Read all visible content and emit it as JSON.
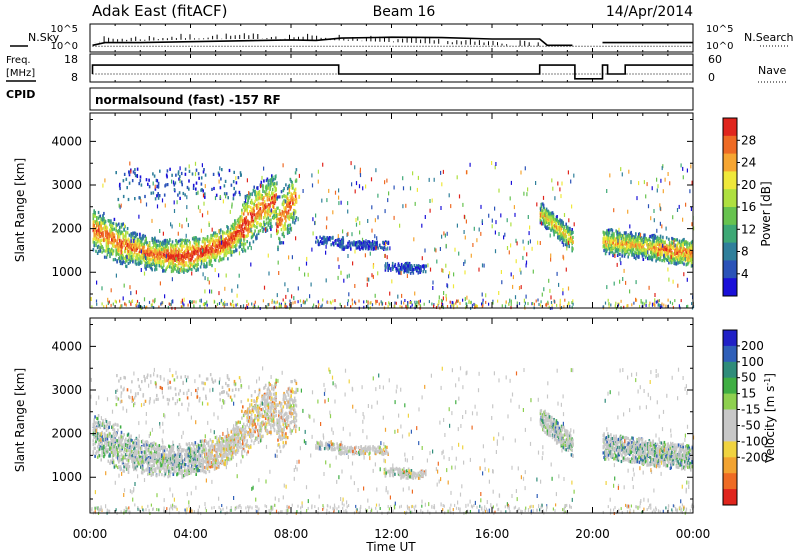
{
  "header": {
    "station": "Adak East (fitACF)",
    "beam": "Beam 16",
    "date": "14/Apr/2014"
  },
  "strip_labels": {
    "nsky": "N.Sky",
    "freq_line1": "Freq.",
    "freq_line2": "[MHz]",
    "cpid": "CPID",
    "nsearch": "N.Search",
    "nave": "Nave"
  },
  "cpid_text": "normalsound (fast) -157 RF",
  "chart_data": [
    {
      "type": "line",
      "name": "noise-strip",
      "left_ticks": [
        "10^5",
        "10^0"
      ],
      "right_ticks": [
        "10^5",
        "10^0"
      ],
      "x_range_hours": [
        0,
        24
      ],
      "series": [
        {
          "label": "N.Sky",
          "style": "solid",
          "x": [
            0.1,
            0.6,
            2.0,
            4.0,
            6.0,
            8.0,
            9.0,
            10.0,
            12.0,
            14.0,
            16.0,
            17.9,
            18.2,
            19.2,
            19.3,
            20.4,
            20.6,
            21.5,
            22.0,
            24.0
          ],
          "y": [
            0.15,
            0.3,
            0.3,
            0.35,
            0.4,
            0.45,
            0.42,
            0.55,
            0.6,
            0.58,
            0.5,
            0.5,
            0.15,
            0.15,
            null,
            0.3,
            0.3,
            0.3,
            0.3,
            0.3
          ]
        },
        {
          "label": "N.Search",
          "style": "dotted",
          "x": [
            0.1,
            24.0
          ],
          "y": [
            0.1,
            0.1
          ]
        }
      ]
    },
    {
      "type": "line",
      "name": "freq-nave-strip",
      "left_ticks": [
        18,
        8
      ],
      "right_ticks": [
        60,
        0
      ],
      "x_range_hours": [
        0,
        24
      ],
      "series": [
        {
          "label": "Freq. [MHz]",
          "style": "solid",
          "x": [
            0.1,
            0.1,
            9.9,
            9.9,
            17.9,
            17.9,
            19.3,
            19.3,
            20.4,
            20.4,
            20.6,
            20.6,
            21.3,
            21.3,
            21.5,
            21.5,
            24.0
          ],
          "y": [
            10.5,
            14.2,
            14.2,
            10.5,
            10.5,
            14.2,
            14.2,
            8.5,
            8.5,
            14.2,
            14.2,
            10.5,
            10.5,
            14.2,
            14.2,
            14.2,
            14.2
          ]
        },
        {
          "label": "Nave",
          "style": "dotted",
          "x": [
            0.1,
            24.0
          ],
          "y": [
            10.5,
            10.5
          ]
        }
      ]
    },
    {
      "type": "heatmap",
      "name": "power-panel",
      "ylabel": "Slant Range [km]",
      "ylim": [
        180,
        4650
      ],
      "yticks": [
        1000,
        2000,
        3000,
        4000
      ],
      "colorbar_label": "Power [dB]",
      "colorbar_ticks": [
        4,
        8,
        12,
        16,
        20,
        24,
        28
      ],
      "colorbar_colors": [
        "#1a10d8",
        "#2a52b8",
        "#2f7f9b",
        "#3da875",
        "#67c34f",
        "#aee040",
        "#efe83a",
        "#f6a531",
        "#ee6a24",
        "#e0251d"
      ]
    },
    {
      "type": "heatmap",
      "name": "velocity-panel",
      "xlabel": "Time UT",
      "ylabel": "Slant Range [km]",
      "ylim": [
        180,
        4650
      ],
      "yticks": [
        1000,
        2000,
        3000,
        4000
      ],
      "xticks": [
        "00:00",
        "04:00",
        "08:00",
        "12:00",
        "16:00",
        "20:00",
        "00:00"
      ],
      "xtick_hours": [
        0,
        4,
        8,
        12,
        16,
        20,
        24
      ],
      "colorbar_label": "Velocity [m s^-1]",
      "colorbar_ticks": [
        200,
        100,
        50,
        15,
        -15,
        -50,
        -100,
        -200
      ],
      "colorbar_colors": [
        "#2121c6",
        "#2f5fb8",
        "#2f8c7a",
        "#3fae43",
        "#8ed04f",
        "#c8c8c8",
        "#c8c8c8",
        "#f0d340",
        "#f2a331",
        "#ee6b24",
        "#e0251d"
      ]
    }
  ]
}
